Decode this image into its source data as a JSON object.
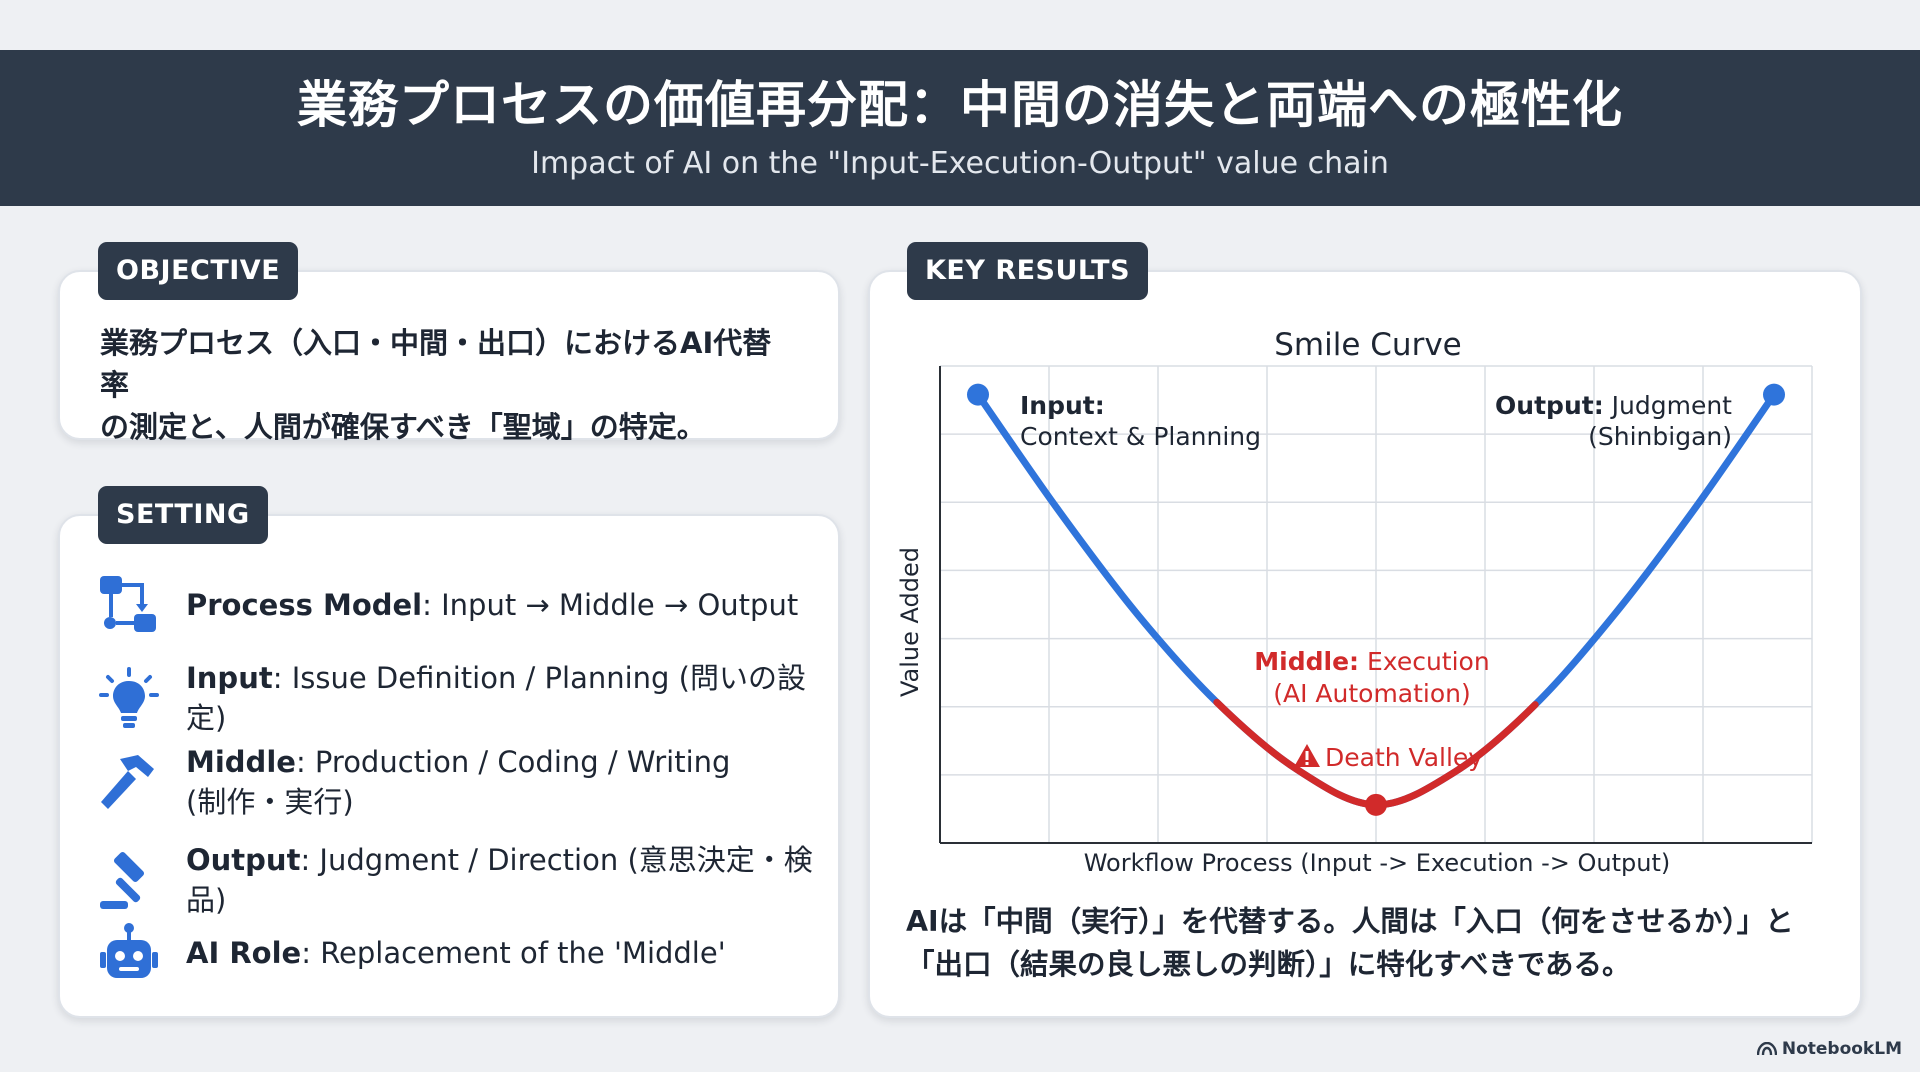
{
  "header": {
    "title": "業務プロセスの価値再分配：中間の消失と両端への極性化",
    "subtitle": "Impact of AI on the \"Input-Execution-Output\" value chain"
  },
  "objective": {
    "tag": "OBJECTIVE",
    "text_line1": "業務プロセス（入口・中間・出口）におけるAI代替率",
    "text_line2": "の測定と、人間が確保すべき「聖域」の特定。"
  },
  "setting": {
    "tag": "SETTING",
    "items": [
      {
        "icon": "process-flow-icon",
        "label": "Process Model",
        "text": ": Input → Middle → Output"
      },
      {
        "icon": "lightbulb-icon",
        "label": "Input",
        "text": ": Issue Definition / Planning (問いの設定)"
      },
      {
        "icon": "hammer-icon",
        "label": "Middle",
        "text": ": Production / Coding / Writing",
        "text2": "(制作・実行)"
      },
      {
        "icon": "gavel-icon",
        "label": "Output",
        "text": ": Judgment / Direction (意思決定・検品)"
      },
      {
        "icon": "robot-icon",
        "label": "AI Role",
        "text": ": Replacement of the 'Middle'"
      }
    ],
    "icon_color": "#2f6fd6"
  },
  "key_results": {
    "tag": "KEY RESULTS",
    "summary_line1": "AIは「中間（実行）」を代替する。人間は「入口（何をさせるか）」と",
    "summary_line2": "「出口（結果の良し悪しの判断）」に特化すべきである。"
  },
  "chart_data": {
    "type": "line",
    "title": "Smile Curve",
    "xlabel": "Workflow Process (Input -> Execution -> Output)",
    "ylabel": "Value Added",
    "xlim": [
      0,
      10
    ],
    "ylim": [
      0,
      10
    ],
    "grid": true,
    "series": [
      {
        "name": "",
        "x": [
          0,
          1,
          2,
          3,
          4,
          5,
          6,
          7,
          8,
          9,
          10
        ],
        "y": [
          9.4,
          7.0,
          4.8,
          2.95,
          1.55,
          0.8,
          1.5,
          2.9,
          4.8,
          7.0,
          9.4
        ]
      }
    ],
    "highlight": {
      "x_range": [
        3,
        7
      ],
      "label": "Death Valley",
      "color": "#d12a2a"
    },
    "line_color": "#2f74db",
    "annotations": {
      "input_bold": "Input:",
      "input_text": "Context & Planning",
      "output_bold": "Output:",
      "output_text": " Judgment",
      "output_text2": "(Shinbigan)",
      "middle_bold": "Middle:",
      "middle_text": " Execution",
      "middle_text2": "(AI Automation)",
      "death_valley": "Death Valley"
    }
  },
  "brand": "NotebookLM"
}
